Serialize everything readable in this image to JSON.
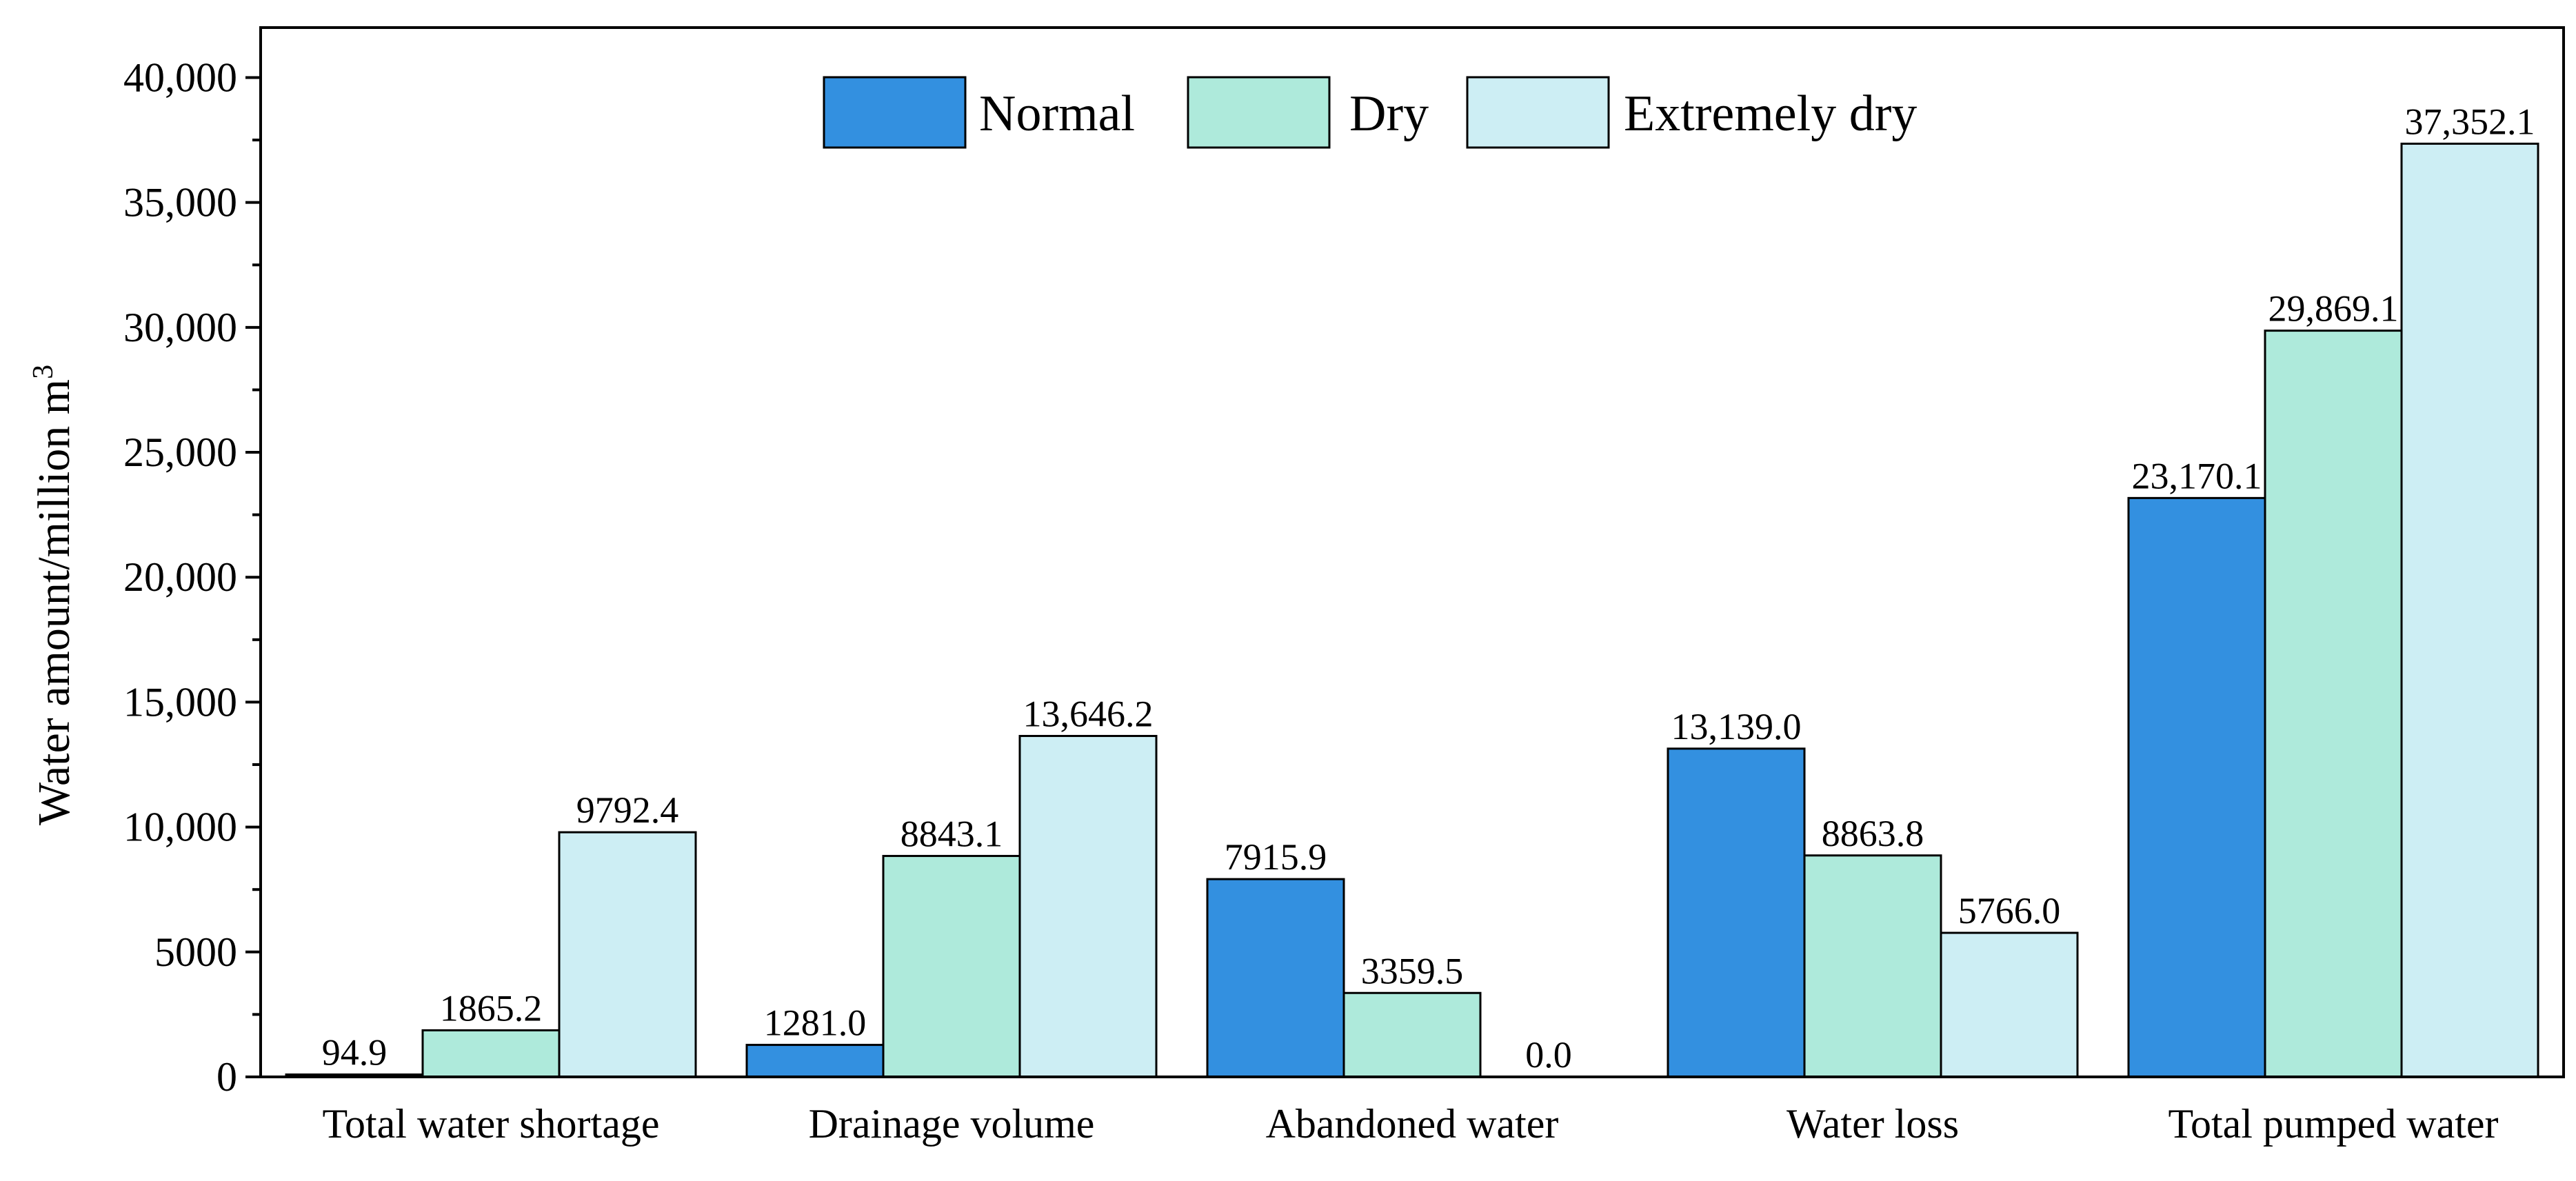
{
  "chart_data": {
    "type": "bar",
    "title": "",
    "xlabel": "",
    "ylabel": "Water amount/million m",
    "ylabel_superscript": "3",
    "ylim": [
      0,
      42000
    ],
    "yticks": [
      0,
      5000,
      10000,
      15000,
      20000,
      25000,
      30000,
      35000,
      40000
    ],
    "ytick_labels": [
      "0",
      "5000",
      "10,000",
      "15,000",
      "20,000",
      "25,000",
      "30,000",
      "35,000",
      "40,000"
    ],
    "categories": [
      "Total water shortage",
      "Drainage volume",
      "Abandoned water",
      "Water loss",
      "Total pumped water"
    ],
    "series": [
      {
        "name": "Normal",
        "color": "#3390e0",
        "values": [
          94.9,
          1281.0,
          7915.9,
          13139.0,
          23170.1
        ],
        "labels": [
          "94.9",
          "1281.0",
          "7915.9",
          "13,139.0",
          "23,170.1"
        ]
      },
      {
        "name": "Dry",
        "color": "#aeeadb",
        "values": [
          1865.2,
          8843.1,
          3359.5,
          8863.8,
          29869.1
        ],
        "labels": [
          "1865.2",
          "8843.1",
          "3359.5",
          "8863.8",
          "29,869.1"
        ]
      },
      {
        "name": "Extremely dry",
        "color": "#cdeef4",
        "values": [
          9792.4,
          13646.2,
          0.0,
          5766.0,
          37352.1
        ],
        "labels": [
          "9792.4",
          "13,646.2",
          "0.0",
          "5766.0",
          "37,352.1"
        ]
      }
    ],
    "legend_position": "top-center",
    "grid": false
  }
}
